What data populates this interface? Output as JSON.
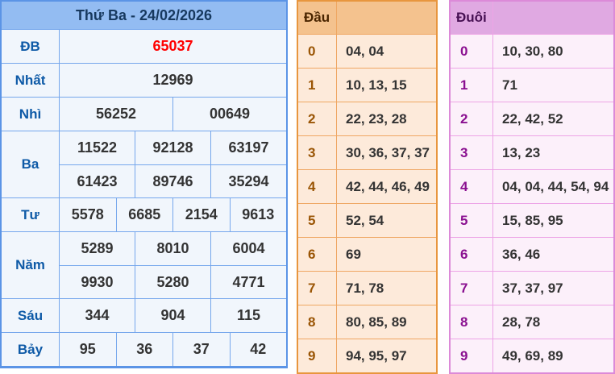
{
  "results_table": {
    "title": "Thứ Ba - 24/02/2026",
    "special_prize_color": "#ff0000",
    "rows": [
      {
        "label": "ĐB",
        "lines": [
          [
            "65037"
          ]
        ]
      },
      {
        "label": "Nhất",
        "lines": [
          [
            "12969"
          ]
        ]
      },
      {
        "label": "Nhì",
        "lines": [
          [
            "56252",
            "00649"
          ]
        ]
      },
      {
        "label": "Ba",
        "lines": [
          [
            "11522",
            "92128",
            "63197"
          ],
          [
            "61423",
            "89746",
            "35294"
          ]
        ]
      },
      {
        "label": "Tư",
        "lines": [
          [
            "5578",
            "6685",
            "2154",
            "9613"
          ]
        ]
      },
      {
        "label": "Năm",
        "lines": [
          [
            "5289",
            "8010",
            "6004"
          ],
          [
            "9930",
            "5280",
            "4771"
          ]
        ]
      },
      {
        "label": "Sáu",
        "lines": [
          [
            "344",
            "904",
            "115"
          ]
        ]
      },
      {
        "label": "Bảy",
        "lines": [
          [
            "95",
            "36",
            "37",
            "42"
          ]
        ]
      }
    ]
  },
  "dau_table": {
    "header": "Đầu",
    "rows": [
      {
        "digit": "0",
        "numbers": "04, 04"
      },
      {
        "digit": "1",
        "numbers": "10, 13, 15"
      },
      {
        "digit": "2",
        "numbers": "22, 23, 28"
      },
      {
        "digit": "3",
        "numbers": "30, 36, 37, 37"
      },
      {
        "digit": "4",
        "numbers": "42, 44, 46, 49"
      },
      {
        "digit": "5",
        "numbers": "52, 54"
      },
      {
        "digit": "6",
        "numbers": "69"
      },
      {
        "digit": "7",
        "numbers": "71, 78"
      },
      {
        "digit": "8",
        "numbers": "80, 85, 89"
      },
      {
        "digit": "9",
        "numbers": "94, 95, 97"
      }
    ]
  },
  "duoi_table": {
    "header": "Đuôi",
    "rows": [
      {
        "digit": "0",
        "numbers": "10, 30, 80"
      },
      {
        "digit": "1",
        "numbers": "71"
      },
      {
        "digit": "2",
        "numbers": "22, 42, 52"
      },
      {
        "digit": "3",
        "numbers": "13, 23"
      },
      {
        "digit": "4",
        "numbers": "04, 04, 44, 54, 94"
      },
      {
        "digit": "5",
        "numbers": "15, 85, 95"
      },
      {
        "digit": "6",
        "numbers": "36, 46"
      },
      {
        "digit": "7",
        "numbers": "37, 37, 97"
      },
      {
        "digit": "8",
        "numbers": "28, 78"
      },
      {
        "digit": "9",
        "numbers": "49, 69, 89"
      }
    ]
  },
  "colors": {
    "results_accent": "#5b94e6",
    "dau_accent": "#e8963e",
    "duoi_accent": "#dc8ad8",
    "value_text": "#333333"
  }
}
